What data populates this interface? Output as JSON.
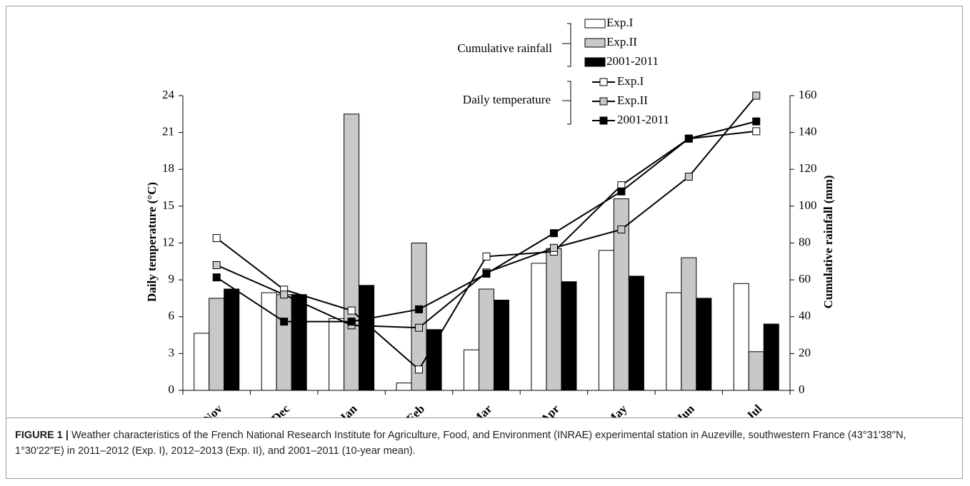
{
  "chart_data": {
    "type": "bar-line",
    "y_label": "Daily temperature (°C)",
    "y2_label": "Cumulative rainfall (mm)",
    "legend_groups": [
      "Cumulative rainfall",
      "Daily temperature"
    ],
    "categories": [
      "Nov",
      "Dec",
      "Jan",
      "Feb",
      "Mar",
      "Apr",
      "May",
      "Jun",
      "Jul"
    ],
    "ylim": [
      0,
      24
    ],
    "yticks": [
      0,
      3,
      6,
      9,
      12,
      15,
      18,
      21,
      24
    ],
    "y2lim": [
      0,
      160
    ],
    "y2ticks": [
      0,
      20,
      40,
      60,
      80,
      100,
      120,
      140,
      160
    ],
    "series": [
      {
        "name": "Exp.I",
        "type": "bar",
        "axis": "y2",
        "color": "#ffffff",
        "values": [
          31,
          53,
          39,
          4,
          22,
          69,
          76,
          53,
          58
        ]
      },
      {
        "name": "Exp.II",
        "type": "bar",
        "axis": "y2",
        "color": "#c8c8c8",
        "values": [
          50,
          52,
          150,
          80,
          55,
          77,
          104,
          72,
          21
        ]
      },
      {
        "name": "2001-2011",
        "type": "bar",
        "axis": "y2",
        "color": "#000000",
        "values": [
          55,
          52,
          57,
          33,
          49,
          59,
          62,
          50,
          36
        ]
      },
      {
        "name": "Exp.I",
        "type": "line",
        "axis": "y",
        "color": "#ffffff",
        "values": [
          12.4,
          8.2,
          6.5,
          1.7,
          10.9,
          11.3,
          16.7,
          20.5,
          21.1
        ]
      },
      {
        "name": "Exp.II",
        "type": "line",
        "axis": "y",
        "color": "#c8c8c8",
        "values": [
          10.2,
          7.8,
          5.3,
          5.1,
          9.6,
          11.6,
          13.1,
          17.4,
          24.0
        ]
      },
      {
        "name": "2001-2011",
        "type": "line",
        "axis": "y",
        "color": "#000000",
        "values": [
          9.2,
          5.6,
          5.6,
          6.6,
          9.5,
          12.8,
          16.2,
          20.5,
          21.9
        ]
      }
    ]
  },
  "caption": {
    "label": "FIGURE 1 |",
    "text": "Weather characteristics of the French National Research Institute for Agriculture, Food, and Environment (INRAE) experimental station in Auzeville, southwestern France (43°31′38′′N, 1°30′22′′E) in 2011–2012 (Exp. I), 2012–2013 (Exp. II), and 2001–2011 (10-year mean)."
  }
}
